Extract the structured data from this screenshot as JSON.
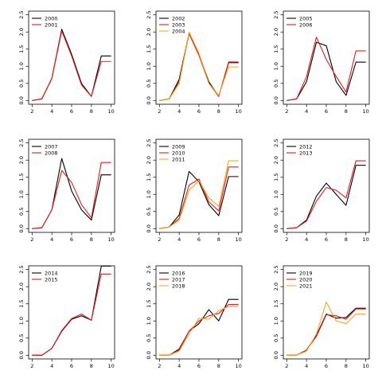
{
  "chart_data": [
    {
      "type": "line",
      "xlim": [
        2,
        10
      ],
      "ylim": [
        0,
        2.5
      ],
      "x_ticks": [
        "2",
        "4",
        "6",
        "8",
        "10"
      ],
      "y_ticks": [
        "0.0",
        "0.5",
        "1.0",
        "1.5",
        "2.0",
        "2.5"
      ],
      "x": [
        2,
        3,
        4,
        5,
        6,
        7,
        8,
        9,
        10
      ],
      "series": [
        {
          "name": "2000",
          "color": "#000000",
          "values": [
            0.0,
            0.05,
            0.65,
            2.08,
            1.35,
            0.5,
            0.12,
            1.3,
            1.3
          ]
        },
        {
          "name": "2001",
          "color": "#e41a1c",
          "values": [
            0.0,
            0.05,
            0.65,
            2.03,
            1.3,
            0.45,
            0.12,
            1.14,
            1.14
          ]
        }
      ]
    },
    {
      "type": "line",
      "xlim": [
        2,
        10
      ],
      "ylim": [
        0,
        2.5
      ],
      "x_ticks": [
        "2",
        "4",
        "6",
        "8",
        "10"
      ],
      "y_ticks": [
        "0.0",
        "0.5",
        "1.0",
        "1.5",
        "2.0",
        "2.5"
      ],
      "x": [
        2,
        3,
        4,
        5,
        6,
        7,
        8,
        9,
        10
      ],
      "series": [
        {
          "name": "2002",
          "color": "#000000",
          "values": [
            0.0,
            0.05,
            0.62,
            1.97,
            1.35,
            0.55,
            0.12,
            1.12,
            1.12
          ]
        },
        {
          "name": "2003",
          "color": "#e41a1c",
          "values": [
            0.0,
            0.05,
            0.55,
            1.95,
            1.32,
            0.5,
            0.12,
            1.1,
            1.1
          ]
        },
        {
          "name": "2004",
          "color": "#f5a623",
          "values": [
            0.0,
            0.05,
            0.5,
            2.0,
            1.38,
            0.5,
            0.15,
            0.98,
            0.98
          ]
        }
      ]
    },
    {
      "type": "line",
      "xlim": [
        2,
        10
      ],
      "ylim": [
        0,
        2.5
      ],
      "x_ticks": [
        "2",
        "4",
        "6",
        "8",
        "10"
      ],
      "y_ticks": [
        "0.0",
        "0.5",
        "1.0",
        "1.5",
        "2.0",
        "2.5"
      ],
      "x": [
        2,
        3,
        4,
        5,
        6,
        7,
        8,
        9,
        10
      ],
      "series": [
        {
          "name": "2005",
          "color": "#000000",
          "values": [
            0.0,
            0.05,
            0.55,
            1.7,
            1.6,
            0.55,
            0.15,
            1.12,
            1.12
          ]
        },
        {
          "name": "2006",
          "color": "#e41a1c",
          "values": [
            0.0,
            0.05,
            0.7,
            1.85,
            1.2,
            0.7,
            0.25,
            1.45,
            1.45
          ]
        }
      ]
    },
    {
      "type": "line",
      "xlim": [
        2,
        10
      ],
      "ylim": [
        0,
        2.5
      ],
      "x_ticks": [
        "2",
        "4",
        "6",
        "8",
        "10"
      ],
      "y_ticks": [
        "0.0",
        "0.5",
        "1.0",
        "1.5",
        "2.0",
        "2.5"
      ],
      "x": [
        2,
        3,
        4,
        5,
        6,
        7,
        8,
        9,
        10
      ],
      "series": [
        {
          "name": "2007",
          "color": "#000000",
          "values": [
            0.0,
            0.03,
            0.55,
            2.05,
            1.1,
            0.55,
            0.25,
            1.57,
            1.57
          ]
        },
        {
          "name": "2008",
          "color": "#e41a1c",
          "values": [
            0.0,
            0.03,
            0.55,
            1.7,
            1.35,
            0.7,
            0.32,
            1.93,
            1.93
          ]
        }
      ]
    },
    {
      "type": "line",
      "xlim": [
        2,
        10
      ],
      "ylim": [
        0,
        2.5
      ],
      "x_ticks": [
        "2",
        "4",
        "6",
        "8",
        "10"
      ],
      "y_ticks": [
        "0.0",
        "0.5",
        "1.0",
        "1.5",
        "2.0",
        "2.5"
      ],
      "x": [
        2,
        3,
        4,
        5,
        6,
        7,
        8,
        9,
        10
      ],
      "series": [
        {
          "name": "2009",
          "color": "#000000",
          "values": [
            0.0,
            0.05,
            0.4,
            1.67,
            1.37,
            0.7,
            0.38,
            1.52,
            1.52
          ]
        },
        {
          "name": "2010",
          "color": "#e41a1c",
          "values": [
            0.0,
            0.05,
            0.3,
            1.27,
            1.45,
            0.78,
            0.52,
            1.8,
            1.8
          ]
        },
        {
          "name": "2011",
          "color": "#f5a623",
          "values": [
            0.0,
            0.05,
            0.25,
            1.12,
            1.4,
            0.9,
            0.65,
            1.98,
            1.98
          ]
        }
      ]
    },
    {
      "type": "line",
      "xlim": [
        2,
        10
      ],
      "ylim": [
        0,
        2.5
      ],
      "x_ticks": [
        "2",
        "4",
        "6",
        "8",
        "10"
      ],
      "y_ticks": [
        "0.0",
        "0.5",
        "1.0",
        "1.5",
        "2.0",
        "2.5"
      ],
      "x": [
        2,
        3,
        4,
        5,
        6,
        7,
        8,
        9,
        10
      ],
      "series": [
        {
          "name": "2012",
          "color": "#000000",
          "values": [
            0.0,
            0.03,
            0.25,
            0.95,
            1.33,
            1.0,
            0.68,
            1.85,
            1.85
          ]
        },
        {
          "name": "2013",
          "color": "#e41a1c",
          "values": [
            0.0,
            0.03,
            0.22,
            0.8,
            1.2,
            1.12,
            0.9,
            1.98,
            1.98
          ]
        }
      ]
    },
    {
      "type": "line",
      "xlim": [
        2,
        10
      ],
      "ylim": [
        0,
        2.5
      ],
      "x_ticks": [
        "2",
        "4",
        "6",
        "8",
        "10"
      ],
      "y_ticks": [
        "0.0",
        "0.5",
        "1.0",
        "1.5",
        "2.0",
        "2.5"
      ],
      "x": [
        2,
        3,
        4,
        5,
        6,
        7,
        8,
        9,
        10
      ],
      "series": [
        {
          "name": "2014",
          "color": "#000000",
          "values": [
            0.0,
            0.0,
            0.2,
            0.7,
            1.05,
            1.15,
            1.02,
            2.6,
            2.6
          ]
        },
        {
          "name": "2015",
          "color": "#e41a1c",
          "values": [
            0.0,
            0.0,
            0.2,
            0.72,
            1.07,
            1.2,
            1.02,
            2.37,
            2.37
          ]
        }
      ]
    },
    {
      "type": "line",
      "xlim": [
        2,
        10
      ],
      "ylim": [
        0,
        2.5
      ],
      "x_ticks": [
        "2",
        "4",
        "6",
        "8",
        "10"
      ],
      "y_ticks": [
        "0.0",
        "0.5",
        "1.0",
        "1.5",
        "2.0",
        "2.5"
      ],
      "x": [
        2,
        3,
        4,
        5,
        6,
        7,
        8,
        9,
        10
      ],
      "series": [
        {
          "name": "2016",
          "color": "#000000",
          "values": [
            0.0,
            0.0,
            0.18,
            0.7,
            0.92,
            1.33,
            1.0,
            1.63,
            1.63
          ]
        },
        {
          "name": "2017",
          "color": "#e41a1c",
          "values": [
            0.0,
            0.0,
            0.15,
            0.7,
            1.0,
            1.15,
            1.22,
            1.48,
            1.48
          ]
        },
        {
          "name": "2018",
          "color": "#f5a623",
          "values": [
            0.0,
            0.0,
            0.12,
            0.62,
            1.08,
            1.05,
            1.3,
            1.42,
            1.42
          ]
        }
      ]
    },
    {
      "type": "line",
      "xlim": [
        2,
        10
      ],
      "ylim": [
        0,
        2.5
      ],
      "x_ticks": [
        "2",
        "4",
        "6",
        "8",
        "10"
      ],
      "y_ticks": [
        "0.0",
        "0.5",
        "1.0",
        "1.5",
        "2.0",
        "2.5"
      ],
      "x": [
        2,
        3,
        4,
        5,
        6,
        7,
        8,
        9,
        10
      ],
      "series": [
        {
          "name": "2019",
          "color": "#000000",
          "values": [
            0.0,
            0.0,
            0.15,
            0.58,
            1.2,
            1.08,
            1.1,
            1.37,
            1.37
          ]
        },
        {
          "name": "2020",
          "color": "#e41a1c",
          "values": [
            0.0,
            0.0,
            0.15,
            0.55,
            1.18,
            1.15,
            1.05,
            1.35,
            1.35
          ]
        },
        {
          "name": "2021",
          "color": "#f5a623",
          "values": [
            0.0,
            0.0,
            0.12,
            0.62,
            1.55,
            1.0,
            0.92,
            1.2,
            1.2
          ]
        }
      ]
    }
  ]
}
